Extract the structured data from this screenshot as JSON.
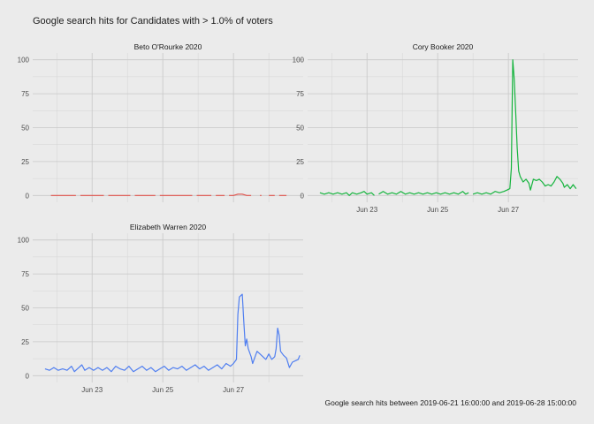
{
  "title": "Google search hits for Candidates with > 1.0% of voters",
  "caption": "Google search hits between 2019-06-21 16:00:00 and 2019-06-28 15:00:00",
  "chart_data": {
    "type": "line",
    "xlim": [
      "2019-06-21T16:00",
      "2019-06-28T15:00"
    ],
    "ylim": [
      0,
      100
    ],
    "y_ticks": [
      0,
      25,
      50,
      75,
      100
    ],
    "x_ticks": [
      {
        "date": "2019-06-23T00:00",
        "label": "Jun 23"
      },
      {
        "date": "2019-06-25T00:00",
        "label": "Jun 25"
      },
      {
        "date": "2019-06-27T00:00",
        "label": "Jun 27"
      }
    ],
    "grid": true,
    "legend": "none",
    "panels": [
      {
        "name": "Beto O'Rourke 2020",
        "color": "#e0524b",
        "points": [
          [
            "2019-06-21T16:00",
            0
          ],
          [
            "2019-06-21T18:00",
            null
          ],
          [
            "2019-06-21T20:00",
            0
          ],
          [
            "2019-06-22T02:00",
            0
          ],
          [
            "2019-06-22T06:00",
            0
          ],
          [
            "2019-06-22T10:00",
            0
          ],
          [
            "2019-06-22T13:00",
            0
          ],
          [
            "2019-06-22T14:00",
            null
          ],
          [
            "2019-06-22T16:00",
            0
          ],
          [
            "2019-06-22T22:00",
            0
          ],
          [
            "2019-06-23T04:00",
            0
          ],
          [
            "2019-06-23T08:00",
            0
          ],
          [
            "2019-06-23T09:00",
            null
          ],
          [
            "2019-06-23T11:00",
            0
          ],
          [
            "2019-06-23T18:00",
            0
          ],
          [
            "2019-06-24T00:00",
            0
          ],
          [
            "2019-06-24T02:00",
            0
          ],
          [
            "2019-06-24T03:00",
            null
          ],
          [
            "2019-06-24T05:00",
            0
          ],
          [
            "2019-06-24T12:00",
            0
          ],
          [
            "2019-06-24T19:00",
            0
          ],
          [
            "2019-06-24T20:00",
            null
          ],
          [
            "2019-06-24T22:00",
            0
          ],
          [
            "2019-06-25T06:00",
            0
          ],
          [
            "2019-06-25T14:00",
            0
          ],
          [
            "2019-06-25T20:00",
            0
          ],
          [
            "2019-06-25T21:00",
            null
          ],
          [
            "2019-06-25T23:00",
            0
          ],
          [
            "2019-06-26T04:00",
            0
          ],
          [
            "2019-06-26T09:00",
            0
          ],
          [
            "2019-06-26T10:00",
            null
          ],
          [
            "2019-06-26T12:00",
            0
          ],
          [
            "2019-06-26T18:00",
            0
          ],
          [
            "2019-06-26T19:00",
            null
          ],
          [
            "2019-06-26T21:00",
            0
          ],
          [
            "2019-06-27T00:00",
            0
          ],
          [
            "2019-06-27T03:00",
            1
          ],
          [
            "2019-06-27T06:00",
            1
          ],
          [
            "2019-06-27T09:00",
            0
          ],
          [
            "2019-06-27T12:00",
            0
          ],
          [
            "2019-06-27T14:00",
            null
          ],
          [
            "2019-06-27T18:00",
            0
          ],
          [
            "2019-06-27T19:00",
            0
          ],
          [
            "2019-06-27T20:00",
            null
          ],
          [
            "2019-06-28T00:00",
            0
          ],
          [
            "2019-06-28T04:00",
            0
          ],
          [
            "2019-06-28T05:00",
            null
          ],
          [
            "2019-06-28T07:00",
            0
          ],
          [
            "2019-06-28T12:00",
            0
          ]
        ]
      },
      {
        "name": "Cory Booker 2020",
        "color": "#16b43e",
        "points": [
          [
            "2019-06-21T16:00",
            2
          ],
          [
            "2019-06-21T19:00",
            1
          ],
          [
            "2019-06-21T22:00",
            2
          ],
          [
            "2019-06-22T01:00",
            1
          ],
          [
            "2019-06-22T04:00",
            2
          ],
          [
            "2019-06-22T07:00",
            1
          ],
          [
            "2019-06-22T10:00",
            2
          ],
          [
            "2019-06-22T12:00",
            0
          ],
          [
            "2019-06-22T14:00",
            2
          ],
          [
            "2019-06-22T17:00",
            1
          ],
          [
            "2019-06-22T20:00",
            2
          ],
          [
            "2019-06-22T22:00",
            3
          ],
          [
            "2019-06-23T00:00",
            1
          ],
          [
            "2019-06-23T03:00",
            2
          ],
          [
            "2019-06-23T05:00",
            0
          ],
          [
            "2019-06-23T06:00",
            null
          ],
          [
            "2019-06-23T08:00",
            1
          ],
          [
            "2019-06-23T11:00",
            3
          ],
          [
            "2019-06-23T14:00",
            1
          ],
          [
            "2019-06-23T17:00",
            2
          ],
          [
            "2019-06-23T20:00",
            1
          ],
          [
            "2019-06-23T23:00",
            3
          ],
          [
            "2019-06-24T02:00",
            1
          ],
          [
            "2019-06-24T05:00",
            2
          ],
          [
            "2019-06-24T08:00",
            1
          ],
          [
            "2019-06-24T11:00",
            2
          ],
          [
            "2019-06-24T14:00",
            1
          ],
          [
            "2019-06-24T17:00",
            2
          ],
          [
            "2019-06-24T20:00",
            1
          ],
          [
            "2019-06-24T23:00",
            2
          ],
          [
            "2019-06-25T02:00",
            1
          ],
          [
            "2019-06-25T05:00",
            2
          ],
          [
            "2019-06-25T08:00",
            1
          ],
          [
            "2019-06-25T11:00",
            2
          ],
          [
            "2019-06-25T14:00",
            1
          ],
          [
            "2019-06-25T17:00",
            3
          ],
          [
            "2019-06-25T19:00",
            1
          ],
          [
            "2019-06-25T21:00",
            2
          ],
          [
            "2019-06-25T22:00",
            null
          ],
          [
            "2019-06-26T00:00",
            1
          ],
          [
            "2019-06-26T03:00",
            2
          ],
          [
            "2019-06-26T06:00",
            1
          ],
          [
            "2019-06-26T09:00",
            2
          ],
          [
            "2019-06-26T12:00",
            1
          ],
          [
            "2019-06-26T15:00",
            3
          ],
          [
            "2019-06-26T18:00",
            2
          ],
          [
            "2019-06-26T21:00",
            3
          ],
          [
            "2019-06-26T23:00",
            4
          ],
          [
            "2019-06-27T01:00",
            5
          ],
          [
            "2019-06-27T02:00",
            20
          ],
          [
            "2019-06-27T03:00",
            100
          ],
          [
            "2019-06-27T04:00",
            85
          ],
          [
            "2019-06-27T05:00",
            60
          ],
          [
            "2019-06-27T06:00",
            35
          ],
          [
            "2019-06-27T07:00",
            18
          ],
          [
            "2019-06-27T08:00",
            14
          ],
          [
            "2019-06-27T10:00",
            10
          ],
          [
            "2019-06-27T12:00",
            12
          ],
          [
            "2019-06-27T14:00",
            9
          ],
          [
            "2019-06-27T15:00",
            4
          ],
          [
            "2019-06-27T17:00",
            12
          ],
          [
            "2019-06-27T19:00",
            11
          ],
          [
            "2019-06-27T21:00",
            12
          ],
          [
            "2019-06-27T23:00",
            10
          ],
          [
            "2019-06-28T01:00",
            7
          ],
          [
            "2019-06-28T03:00",
            8
          ],
          [
            "2019-06-28T05:00",
            7
          ],
          [
            "2019-06-28T07:00",
            10
          ],
          [
            "2019-06-28T09:00",
            14
          ],
          [
            "2019-06-28T11:00",
            12
          ],
          [
            "2019-06-28T13:00",
            9
          ],
          [
            "2019-06-28T14:00",
            6
          ],
          [
            "2019-06-28T16:00",
            8
          ],
          [
            "2019-06-28T18:00",
            5
          ],
          [
            "2019-06-28T20:00",
            8
          ],
          [
            "2019-06-28T22:00",
            5
          ]
        ]
      },
      {
        "name": "Elizabeth Warren 2020",
        "color": "#4f7ef0",
        "points": [
          [
            "2019-06-21T16:00",
            5
          ],
          [
            "2019-06-21T19:00",
            4
          ],
          [
            "2019-06-21T22:00",
            6
          ],
          [
            "2019-06-22T01:00",
            4
          ],
          [
            "2019-06-22T04:00",
            5
          ],
          [
            "2019-06-22T07:00",
            4
          ],
          [
            "2019-06-22T10:00",
            7
          ],
          [
            "2019-06-22T12:00",
            3
          ],
          [
            "2019-06-22T14:00",
            5
          ],
          [
            "2019-06-22T17:00",
            8
          ],
          [
            "2019-06-22T19:00",
            4
          ],
          [
            "2019-06-22T22:00",
            6
          ],
          [
            "2019-06-23T01:00",
            4
          ],
          [
            "2019-06-23T04:00",
            6
          ],
          [
            "2019-06-23T07:00",
            4
          ],
          [
            "2019-06-23T10:00",
            6
          ],
          [
            "2019-06-23T13:00",
            3
          ],
          [
            "2019-06-23T16:00",
            7
          ],
          [
            "2019-06-23T19:00",
            5
          ],
          [
            "2019-06-23T22:00",
            4
          ],
          [
            "2019-06-24T01:00",
            7
          ],
          [
            "2019-06-24T04:00",
            3
          ],
          [
            "2019-06-24T07:00",
            5
          ],
          [
            "2019-06-24T10:00",
            7
          ],
          [
            "2019-06-24T13:00",
            4
          ],
          [
            "2019-06-24T16:00",
            6
          ],
          [
            "2019-06-24T19:00",
            3
          ],
          [
            "2019-06-24T22:00",
            5
          ],
          [
            "2019-06-25T01:00",
            7
          ],
          [
            "2019-06-25T04:00",
            4
          ],
          [
            "2019-06-25T07:00",
            6
          ],
          [
            "2019-06-25T10:00",
            5
          ],
          [
            "2019-06-25T13:00",
            7
          ],
          [
            "2019-06-25T16:00",
            4
          ],
          [
            "2019-06-25T19:00",
            6
          ],
          [
            "2019-06-25T22:00",
            8
          ],
          [
            "2019-06-26T01:00",
            5
          ],
          [
            "2019-06-26T04:00",
            7
          ],
          [
            "2019-06-26T07:00",
            4
          ],
          [
            "2019-06-26T10:00",
            6
          ],
          [
            "2019-06-26T13:00",
            8
          ],
          [
            "2019-06-26T16:00",
            5
          ],
          [
            "2019-06-26T19:00",
            9
          ],
          [
            "2019-06-26T22:00",
            7
          ],
          [
            "2019-06-27T00:00",
            9
          ],
          [
            "2019-06-27T02:00",
            12
          ],
          [
            "2019-06-27T03:00",
            45
          ],
          [
            "2019-06-27T04:00",
            58
          ],
          [
            "2019-06-27T06:00",
            60
          ],
          [
            "2019-06-27T07:00",
            40
          ],
          [
            "2019-06-27T08:00",
            22
          ],
          [
            "2019-06-27T09:00",
            27
          ],
          [
            "2019-06-27T10:00",
            20
          ],
          [
            "2019-06-27T12:00",
            14
          ],
          [
            "2019-06-27T13:00",
            9
          ],
          [
            "2019-06-27T15:00",
            15
          ],
          [
            "2019-06-27T16:00",
            18
          ],
          [
            "2019-06-27T18:00",
            16
          ],
          [
            "2019-06-27T20:00",
            14
          ],
          [
            "2019-06-27T22:00",
            12
          ],
          [
            "2019-06-28T00:00",
            16
          ],
          [
            "2019-06-28T02:00",
            12
          ],
          [
            "2019-06-28T04:00",
            14
          ],
          [
            "2019-06-28T05:00",
            20
          ],
          [
            "2019-06-28T06:00",
            35
          ],
          [
            "2019-06-28T07:00",
            30
          ],
          [
            "2019-06-28T08:00",
            18
          ],
          [
            "2019-06-28T10:00",
            15
          ],
          [
            "2019-06-28T12:00",
            13
          ],
          [
            "2019-06-28T14:00",
            6
          ],
          [
            "2019-06-28T16:00",
            10
          ],
          [
            "2019-06-28T18:00",
            11
          ],
          [
            "2019-06-28T20:00",
            12
          ],
          [
            "2019-06-28T21:00",
            15
          ]
        ]
      }
    ]
  }
}
